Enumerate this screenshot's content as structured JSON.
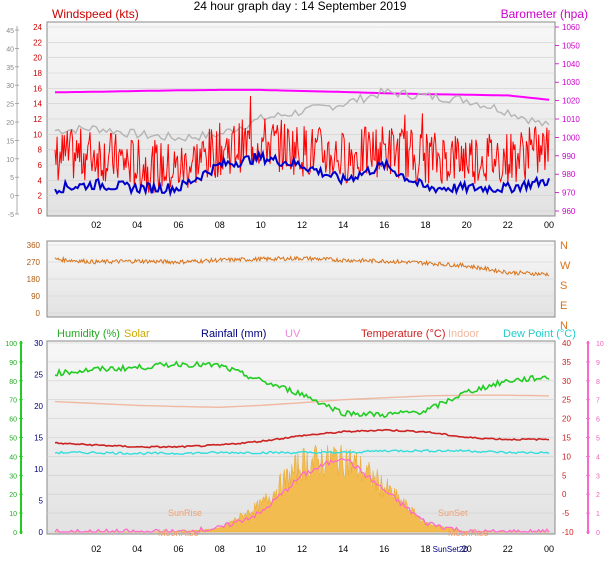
{
  "title": "24 hour graph day : 14 September 2019",
  "colors": {
    "wind": "#ff0000",
    "wind_avg": "#0000cc",
    "gust_max": "#b4b4b4",
    "barometer": "#ff00ff",
    "direction": "#d9741a",
    "humidity": "#22cc22",
    "solar": "#f5b840",
    "rainfall": "#000080",
    "uv": "#ff66cc",
    "temperature": "#cc2222",
    "indoor": "#f0b8a0",
    "dewpoint": "#33dddd",
    "grid": "#cfcfcf",
    "plot_bg_top": "#f7f7f7",
    "plot_bg_bottom": "#e4e4e4"
  },
  "x_ticks": [
    "02",
    "04",
    "06",
    "08",
    "10",
    "12",
    "14",
    "16",
    "18",
    "20",
    "22",
    "00"
  ],
  "chart_data": [
    {
      "type": "line",
      "title": "Windspeed",
      "ylabel_left": "Windspeed (kts)",
      "ylabel_right": "Barometer (hpa)",
      "left_ticks": [
        "0",
        "2",
        "4",
        "6",
        "8",
        "10",
        "12",
        "14",
        "16",
        "18",
        "20",
        "22",
        "24"
      ],
      "outer_ticks": [
        "-5",
        "0",
        "5",
        "10",
        "15",
        "20",
        "25",
        "30",
        "35",
        "40",
        "45"
      ],
      "right_ticks": [
        "960",
        "970",
        "980",
        "990",
        "1000",
        "1010",
        "1020",
        "1030",
        "1040",
        "1050",
        "1060"
      ],
      "ylim": [
        0,
        24
      ],
      "ylim_right": [
        960,
        1060
      ],
      "x_hours": [
        0,
        2,
        4,
        6,
        8,
        10,
        12,
        14,
        16,
        18,
        20,
        22,
        24
      ],
      "series": [
        {
          "name": "Barometer",
          "axis": "right",
          "values": [
            1024.5,
            1024.8,
            1025.2,
            1025.6,
            1025.8,
            1025.8,
            1025.2,
            1024.7,
            1024.0,
            1023.5,
            1023.2,
            1022.8,
            1020.5
          ]
        },
        {
          "name": "Gust max",
          "values": [
            10.5,
            10.8,
            10.0,
            9.5,
            10.0,
            12.0,
            13.0,
            14.0,
            15.5,
            15.0,
            14.5,
            13.0,
            11.0
          ]
        },
        {
          "name": "Wind",
          "values": [
            7,
            7.5,
            6,
            5.5,
            8,
            9,
            8,
            7,
            8,
            7,
            7,
            7,
            8
          ]
        },
        {
          "name": "Average",
          "values": [
            3,
            3.5,
            3,
            3,
            6,
            7,
            6,
            4,
            6,
            3,
            3,
            3,
            4
          ]
        }
      ]
    },
    {
      "type": "scatter",
      "title": "Wind direction",
      "left_ticks": [
        "0",
        "90",
        "180",
        "270",
        "360"
      ],
      "right_ticks": [
        "N",
        "E",
        "S",
        "W",
        "N"
      ],
      "ylim": [
        0,
        360
      ],
      "x_hours": [
        0,
        2,
        4,
        6,
        8,
        10,
        12,
        14,
        16,
        18,
        20,
        22,
        24
      ],
      "series": [
        {
          "name": "Direction",
          "values": [
            285,
            270,
            275,
            270,
            280,
            285,
            290,
            280,
            275,
            265,
            250,
            215,
            205
          ]
        }
      ]
    },
    {
      "type": "line",
      "legend": [
        "Humidity (%)",
        "Solar",
        "Rainfall (mm)",
        "UV",
        "Temperature (°C)",
        "Indoor",
        "Dew Point (°C)"
      ],
      "humidity_ticks": [
        "0",
        "10",
        "20",
        "30",
        "40",
        "50",
        "60",
        "70",
        "80",
        "90",
        "100"
      ],
      "rain_ticks": [
        "0",
        "5",
        "10",
        "15",
        "20",
        "25",
        "30"
      ],
      "temp_ticks": [
        "-10",
        "-5",
        "0",
        "5",
        "10",
        "15",
        "20",
        "25",
        "30",
        "35",
        "40"
      ],
      "uv_ticks": [
        "0",
        "1",
        "2",
        "3",
        "4",
        "5",
        "6",
        "7",
        "8",
        "9",
        "10"
      ],
      "ylim_humidity": [
        0,
        100
      ],
      "ylim_temperature": [
        -10,
        40
      ],
      "x_hours": [
        0,
        2,
        4,
        6,
        8,
        10,
        12,
        14,
        16,
        18,
        20,
        22,
        24
      ],
      "series": [
        {
          "name": "Humidity",
          "axis": "humidity",
          "values": [
            84,
            86,
            87,
            89,
            88,
            80,
            73,
            63,
            62,
            64,
            74,
            80,
            82
          ]
        },
        {
          "name": "Indoor",
          "axis": "temperature",
          "values": [
            24.5,
            24.0,
            23.5,
            23.2,
            23.0,
            23.5,
            24.2,
            25.0,
            25.5,
            26.0,
            26.2,
            26.2,
            26.0
          ]
        },
        {
          "name": "Temperature",
          "axis": "temperature",
          "values": [
            13.5,
            13.0,
            12.5,
            12.5,
            13.0,
            14.0,
            15.5,
            16.5,
            17.0,
            16.5,
            15.0,
            14.5,
            14.5
          ]
        },
        {
          "name": "Dew Point",
          "axis": "temperature",
          "values": [
            11.0,
            11.0,
            10.8,
            10.8,
            11.0,
            11.0,
            11.0,
            11.0,
            11.5,
            11.5,
            11.5,
            11.0,
            11.0
          ]
        },
        {
          "name": "Solar",
          "axis": "humidity",
          "values": [
            0,
            0,
            0,
            0,
            2,
            15,
            38,
            42,
            25,
            5,
            0,
            0,
            0
          ]
        },
        {
          "name": "UV",
          "axis": "uv",
          "values": [
            0,
            0,
            0,
            0,
            0.2,
            1,
            3,
            4,
            2.2,
            0.5,
            0,
            0,
            0
          ]
        }
      ],
      "annotations": [
        "SunRise",
        "SunSet",
        "MoonRise",
        "MoonRise",
        "SunSet20"
      ]
    }
  ]
}
